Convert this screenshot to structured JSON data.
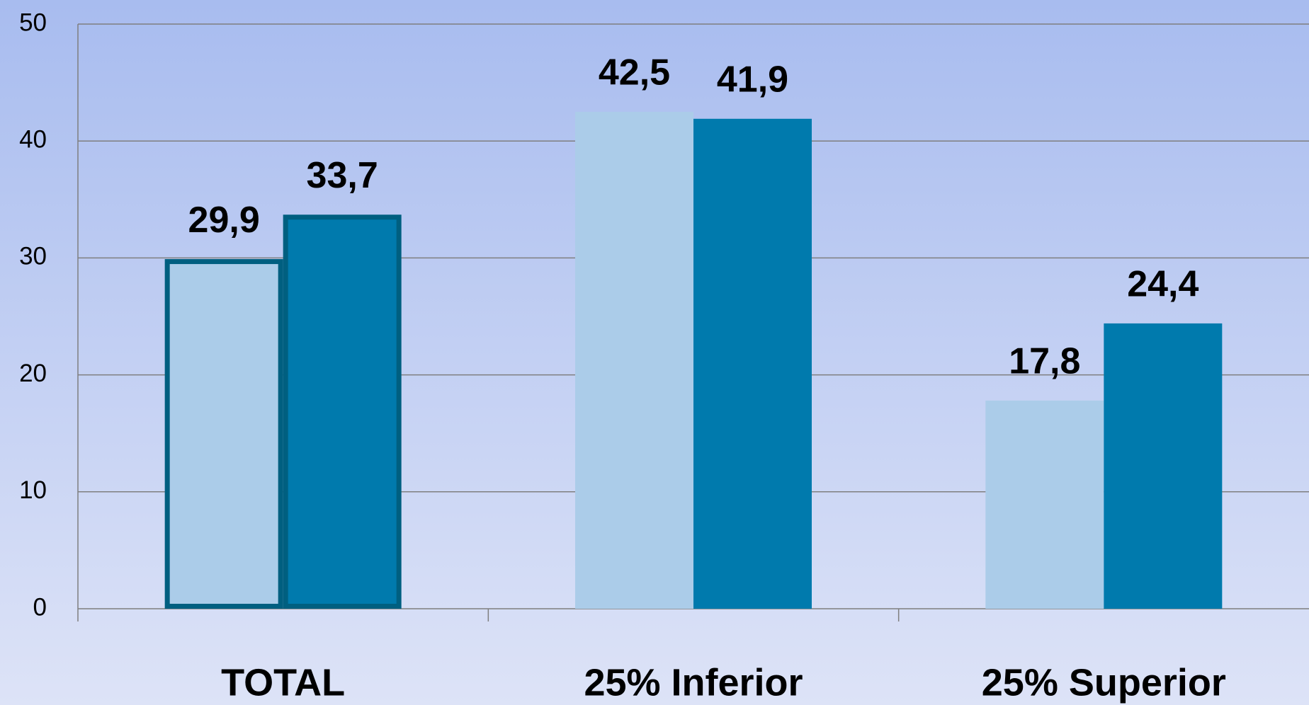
{
  "chart_data": {
    "type": "bar",
    "categories": [
      "TOTAL",
      "25% Inferior",
      "25% Superior"
    ],
    "series": [
      {
        "color": "#abcce9",
        "values": [
          29.9,
          42.5,
          17.8
        ],
        "value_labels": [
          "29,9",
          "42,5",
          "17,8"
        ]
      },
      {
        "color": "#007aad",
        "values": [
          33.7,
          41.9,
          24.4
        ],
        "value_labels": [
          "33,7",
          "41,9",
          "24,4"
        ]
      }
    ],
    "ylim": [
      0,
      50
    ],
    "yticks": [
      0,
      10,
      20,
      30,
      40,
      50
    ],
    "grid": true,
    "highlight_index": 0,
    "highlight_color": "#005f80"
  }
}
